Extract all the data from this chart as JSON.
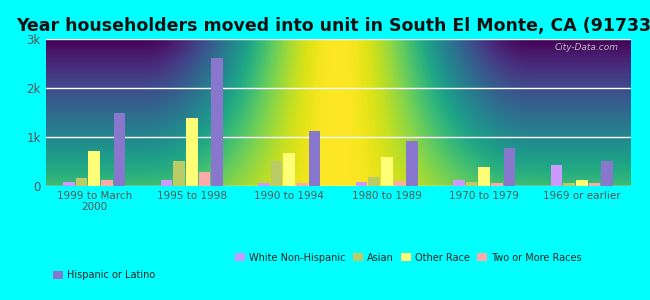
{
  "title": "Year householders moved into unit in South El Monte, CA (91733)",
  "categories": [
    "1999 to March\n2000",
    "1995 to 1998",
    "1990 to 1994",
    "1980 to 1989",
    "1970 to 1979",
    "1969 or earlier"
  ],
  "series": {
    "White Non-Hispanic": [
      80,
      120,
      60,
      80,
      120,
      430
    ],
    "Asian": [
      160,
      520,
      520,
      180,
      80,
      70
    ],
    "Other Race": [
      720,
      1380,
      680,
      600,
      380,
      130
    ],
    "Two or More Races": [
      130,
      280,
      60,
      100,
      60,
      60
    ],
    "Hispanic or Latino": [
      1480,
      2620,
      1120,
      920,
      770,
      520
    ]
  },
  "colors": {
    "White Non-Hispanic": "#cc99ff",
    "Asian": "#bbcc66",
    "Other Race": "#ffff77",
    "Two or More Races": "#ffaaaa",
    "Hispanic or Latino": "#8877cc"
  },
  "ylim": [
    0,
    3000
  ],
  "yticks": [
    0,
    1000,
    2000,
    3000
  ],
  "ytick_labels": [
    "0",
    "1k",
    "2k",
    "3k"
  ],
  "outer_bg": "#00ffff",
  "plot_bg_top": "#dfffdf",
  "plot_bg_bottom": "#f5fff5",
  "watermark": "City-Data.com",
  "title_fontsize": 12.5,
  "bar_width": 0.13,
  "legend_row1": [
    "White Non-Hispanic",
    "Asian",
    "Other Race",
    "Two or More Races"
  ],
  "legend_row2": [
    "Hispanic or Latino"
  ]
}
